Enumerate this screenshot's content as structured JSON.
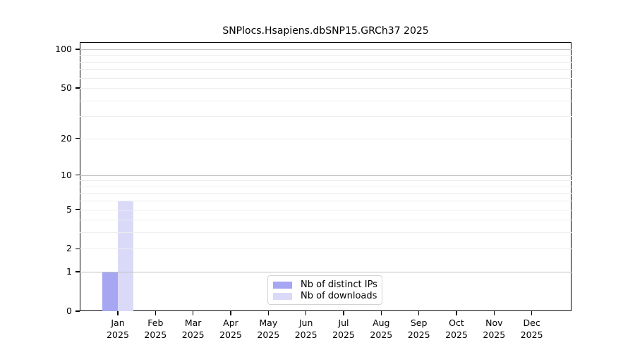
{
  "chart_data": {
    "type": "bar",
    "title": "SNPlocs.Hsapiens.dbSNP15.GRCh37 2025",
    "xlabel": "",
    "ylabel": "",
    "year": "2025",
    "months": [
      "Jan",
      "Feb",
      "Mar",
      "Apr",
      "May",
      "Jun",
      "Jul",
      "Aug",
      "Sep",
      "Oct",
      "Nov",
      "Dec"
    ],
    "categories": [
      "Jan 2025",
      "Feb 2025",
      "Mar 2025",
      "Apr 2025",
      "May 2025",
      "Jun 2025",
      "Jul 2025",
      "Aug 2025",
      "Sep 2025",
      "Oct 2025",
      "Nov 2025",
      "Dec 2025"
    ],
    "series": [
      {
        "name": "Nb of distinct IPs",
        "color": "#a6a6f2",
        "values": [
          1,
          0,
          0,
          0,
          0,
          0,
          0,
          0,
          0,
          0,
          0,
          0
        ]
      },
      {
        "name": "Nb of downloads",
        "color": "#dadaf8",
        "values": [
          6,
          0,
          0,
          0,
          0,
          0,
          0,
          0,
          0,
          0,
          0,
          0
        ]
      }
    ],
    "y_scale": "log10(1+value)",
    "ylim": [
      0,
      100
    ],
    "y_ticks": [
      0,
      1,
      2,
      5,
      10,
      20,
      50,
      100
    ],
    "y_major_gridlines": [
      1,
      10,
      100
    ],
    "y_minor_gridlines": [
      2,
      3,
      4,
      5,
      6,
      7,
      8,
      9,
      20,
      30,
      40,
      50,
      60,
      70,
      80,
      90
    ],
    "grid": true,
    "legend_position": "bottom-center",
    "colors": {
      "spine": "#000000",
      "major_grid": "#c0c0c0",
      "minor_grid": "#ededed",
      "background": "#ffffff"
    }
  }
}
